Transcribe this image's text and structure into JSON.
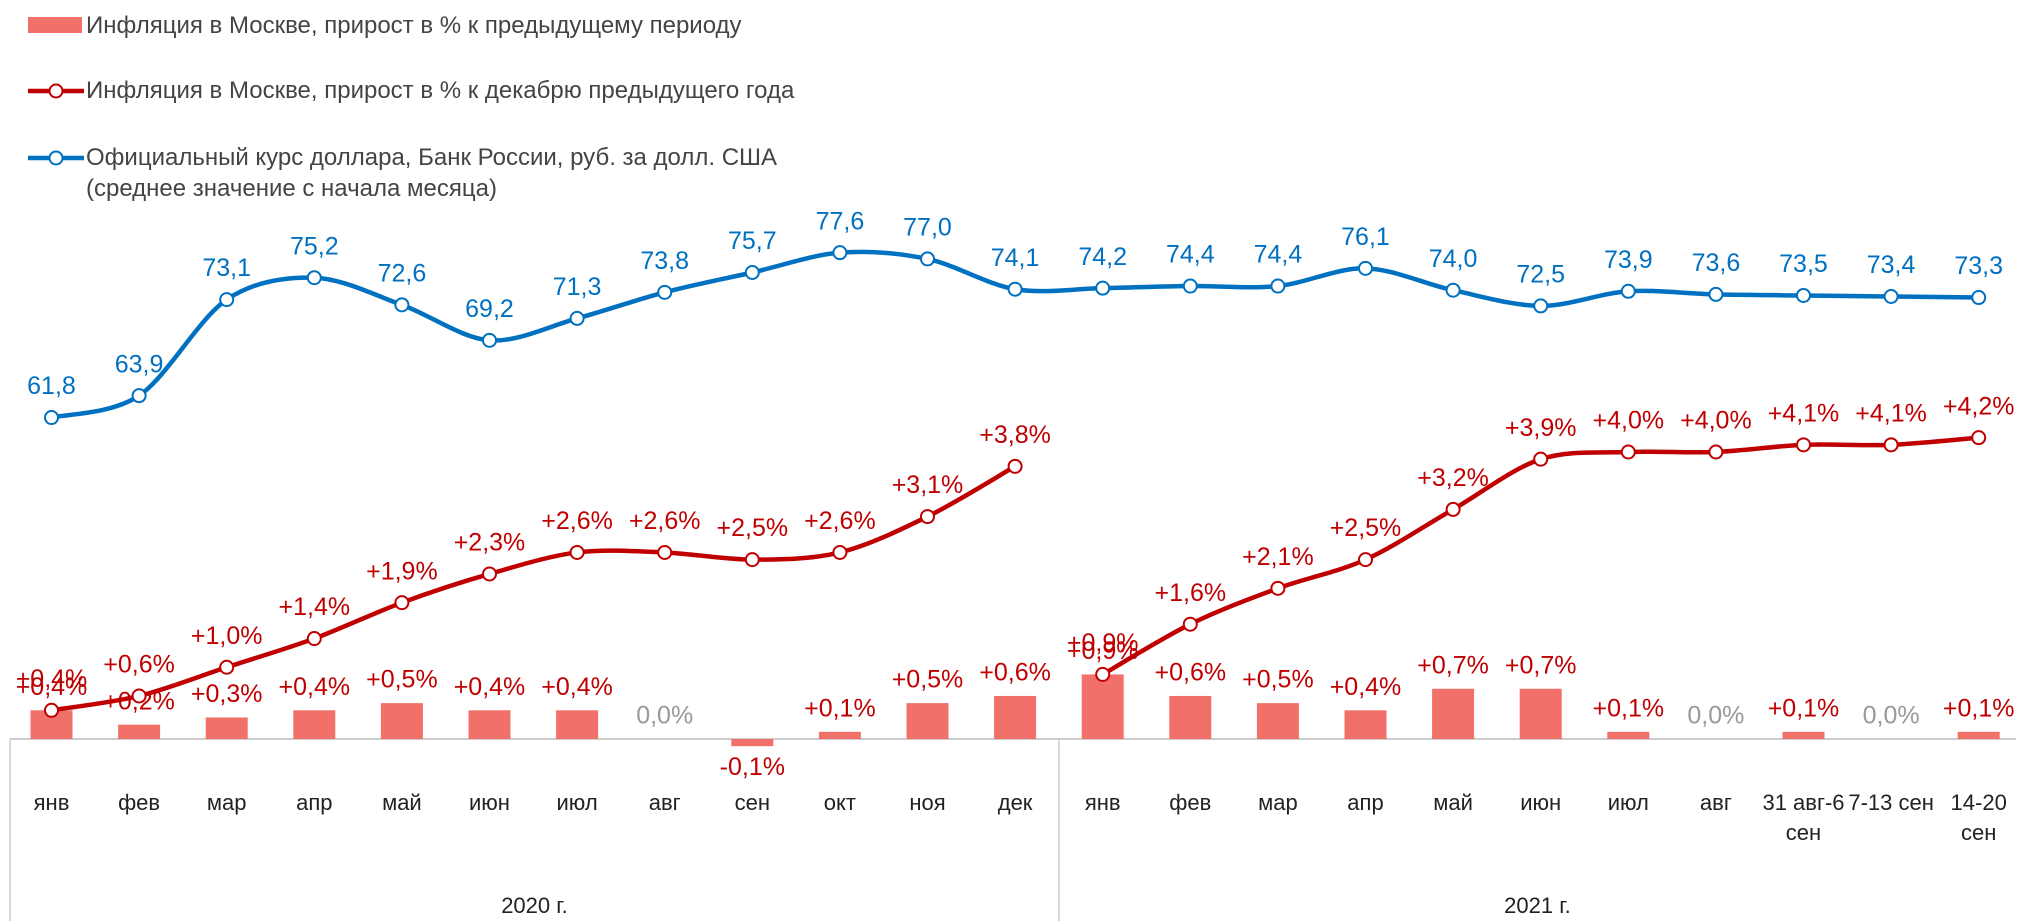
{
  "chart_data": {
    "type": "bar-line",
    "groups": [
      {
        "label": "2020 г.",
        "categories": [
          "янв",
          "фев",
          "мар",
          "апр",
          "май",
          "июн",
          "июл",
          "авг",
          "сен",
          "окт",
          "ноя",
          "дек"
        ]
      },
      {
        "label": "2021 г.",
        "categories": [
          "янв",
          "фев",
          "мар",
          "апр",
          "май",
          "июн",
          "июл",
          "авг",
          "31 авг-6 сен",
          "7-13 сен",
          "14-20 сен"
        ]
      }
    ],
    "ylim": [
      0,
      8
    ],
    "y2lim": [
      31,
      86
    ],
    "series": [
      {
        "name": "Инфляция в Москве, прирост в % к предыдущему периоду",
        "type": "bar",
        "color": "#f2706a",
        "values": [
          0.4,
          0.2,
          0.3,
          0.4,
          0.5,
          0.4,
          0.4,
          0.0,
          -0.1,
          0.1,
          0.5,
          0.6,
          0.9,
          0.6,
          0.5,
          0.4,
          0.7,
          0.7,
          0.1,
          0.0,
          0.1,
          0.0,
          0.1
        ],
        "value_labels": [
          "+0,4%",
          "+0,2%",
          "+0,3%",
          "+0,4%",
          "+0,5%",
          "+0,4%",
          "+0,4%",
          "0,0%",
          "-0,1%",
          "+0,1%",
          "+0,5%",
          "+0,6%",
          "+0,9%",
          "+0,6%",
          "+0,5%",
          "+0,4%",
          "+0,7%",
          "+0,7%",
          "+0,1%",
          "0,0%",
          "+0,1%",
          "0,0%",
          "+0,1%"
        ]
      },
      {
        "name": "Инфляция в Москве, прирост в % к декабрю предыдущего года",
        "type": "line",
        "color": "#c00000",
        "values": [
          0.4,
          0.6,
          1.0,
          1.4,
          1.9,
          2.3,
          2.6,
          2.6,
          2.5,
          2.6,
          3.1,
          3.8,
          0.9,
          1.6,
          2.1,
          2.5,
          3.2,
          3.9,
          4.0,
          4.0,
          4.1,
          4.1,
          4.2
        ],
        "value_labels": [
          "+0,4%",
          "+0,6%",
          "+1,0%",
          "+1,4%",
          "+1,9%",
          "+2,3%",
          "+2,6%",
          "+2,6%",
          "+2,5%",
          "+2,6%",
          "+3,1%",
          "+3,8%",
          "+0,9%",
          "+1,6%",
          "+2,1%",
          "+2,5%",
          "+3,2%",
          "+3,9%",
          "+4,0%",
          "+4,0%",
          "+4,1%",
          "+4,1%",
          "+4,2%"
        ]
      },
      {
        "name": "Официальный курс доллара, Банк России, руб. за долл. США (среднее значение с начала месяца)",
        "type": "line",
        "axis": "y2",
        "color": "#0070c0",
        "values": [
          61.8,
          63.9,
          73.1,
          75.2,
          72.6,
          69.2,
          71.3,
          73.8,
          75.7,
          77.6,
          77.0,
          74.1,
          74.2,
          74.4,
          74.4,
          76.1,
          74.0,
          72.5,
          73.9,
          73.6,
          73.5,
          73.4,
          73.3
        ],
        "value_labels": [
          "61,8",
          "63,9",
          "73,1",
          "75,2",
          "72,6",
          "69,2",
          "71,3",
          "73,8",
          "75,7",
          "77,6",
          "77,0",
          "74,1",
          "74,2",
          "74,4",
          "74,4",
          "76,1",
          "74,0",
          "72,5",
          "73,9",
          "73,6",
          "73,5",
          "73,4",
          "73,3"
        ]
      }
    ]
  }
}
